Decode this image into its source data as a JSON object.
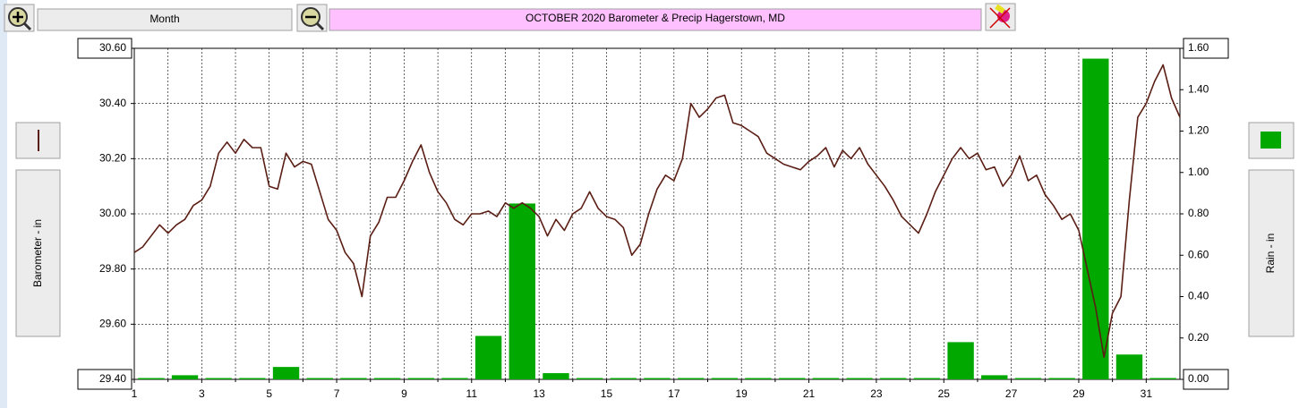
{
  "toolbar": {
    "period": "Month"
  },
  "chart_data": {
    "type": "combo",
    "title": "OCTOBER  2020   Barometer & Precip    Hagerstown, MD",
    "xlim": [
      1,
      32
    ],
    "xticks": [
      1,
      3,
      5,
      7,
      9,
      11,
      13,
      15,
      17,
      19,
      21,
      23,
      25,
      27,
      29,
      31
    ],
    "x_minor_ticks": [
      2,
      4,
      6,
      8,
      10,
      12,
      14,
      16,
      18,
      20,
      22,
      24,
      26,
      28,
      30
    ],
    "ylim": [
      29.4,
      30.6
    ],
    "yticks": [
      {
        "value": 29.4,
        "label": "29.40"
      },
      {
        "value": 29.6,
        "label": "29.60"
      },
      {
        "value": 29.8,
        "label": "29.80"
      },
      {
        "value": 30,
        "label": "30.00"
      },
      {
        "value": 30.2,
        "label": "30.20"
      },
      {
        "value": 30.4,
        "label": "30.40"
      },
      {
        "value": 30.6,
        "label": "30.60"
      }
    ],
    "y2lim": [
      0,
      1.6
    ],
    "y2ticks": [
      {
        "value": 0,
        "label": "0.00"
      },
      {
        "value": 0.2,
        "label": "0.20"
      },
      {
        "value": 0.4,
        "label": "0.40"
      },
      {
        "value": 0.6,
        "label": "0.60"
      },
      {
        "value": 0.8,
        "label": "0.80"
      },
      {
        "value": 1,
        "label": "1.00"
      },
      {
        "value": 1.2,
        "label": "1.20"
      },
      {
        "value": 1.4,
        "label": "1.40"
      },
      {
        "value": 1.6,
        "label": "1.60"
      }
    ],
    "grid": true,
    "series": [
      {
        "name": "Barometer - in",
        "type": "line",
        "color": "#5a1e14",
        "x": [
          1,
          1.25,
          1.5,
          1.75,
          2,
          2.25,
          2.5,
          2.75,
          3,
          3.25,
          3.5,
          3.75,
          4,
          4.25,
          4.5,
          4.75,
          5,
          5.25,
          5.5,
          5.75,
          6,
          6.25,
          6.5,
          6.75,
          7,
          7.25,
          7.5,
          7.75,
          8,
          8.25,
          8.5,
          8.75,
          9,
          9.25,
          9.5,
          9.75,
          10,
          10.25,
          10.5,
          10.75,
          11,
          11.25,
          11.5,
          11.75,
          12,
          12.25,
          12.5,
          12.75,
          13,
          13.25,
          13.5,
          13.75,
          14,
          14.25,
          14.5,
          14.75,
          15,
          15.25,
          15.5,
          15.75,
          16,
          16.25,
          16.5,
          16.75,
          17,
          17.25,
          17.5,
          17.75,
          18,
          18.25,
          18.5,
          18.75,
          19,
          19.25,
          19.5,
          19.75,
          20,
          20.25,
          20.5,
          20.75,
          21,
          21.25,
          21.5,
          21.75,
          22,
          22.25,
          22.5,
          22.75,
          23,
          23.25,
          23.5,
          23.75,
          24,
          24.25,
          24.5,
          24.75,
          25,
          25.25,
          25.5,
          25.75,
          26,
          26.25,
          26.5,
          26.75,
          27,
          27.25,
          27.5,
          27.75,
          28,
          28.25,
          28.5,
          28.75,
          29,
          29.25,
          29.5,
          29.75,
          30,
          30.25,
          30.5,
          30.75,
          31,
          31.25,
          31.5,
          31.75,
          32
        ],
        "values": [
          29.86,
          29.88,
          29.92,
          29.96,
          29.93,
          29.96,
          29.98,
          30.03,
          30.05,
          30.1,
          30.22,
          30.26,
          30.22,
          30.27,
          30.24,
          30.24,
          30.1,
          30.09,
          30.22,
          30.17,
          30.19,
          30.18,
          30.08,
          29.98,
          29.94,
          29.86,
          29.82,
          29.7,
          29.92,
          29.97,
          30.06,
          30.06,
          30.12,
          30.19,
          30.25,
          30.15,
          30.08,
          30.04,
          29.98,
          29.96,
          30,
          30,
          30.01,
          29.99,
          30.04,
          30.02,
          30.04,
          30.02,
          29.99,
          29.92,
          29.98,
          29.94,
          30,
          30.02,
          30.08,
          30.02,
          29.99,
          29.98,
          29.95,
          29.85,
          29.89,
          30,
          30.09,
          30.14,
          30.12,
          30.2,
          30.4,
          30.35,
          30.38,
          30.42,
          30.43,
          30.33,
          30.32,
          30.3,
          30.28,
          30.22,
          30.2,
          30.18,
          30.17,
          30.16,
          30.19,
          30.21,
          30.24,
          30.17,
          30.23,
          30.2,
          30.24,
          30.18,
          30.14,
          30.1,
          30.05,
          29.99,
          29.96,
          29.93,
          30,
          30.08,
          30.14,
          30.2,
          30.24,
          30.2,
          30.22,
          30.16,
          30.17,
          30.1,
          30.14,
          30.21,
          30.12,
          30.14,
          30.07,
          30.03,
          29.98,
          30,
          29.94,
          29.8,
          29.66,
          29.48,
          29.64,
          29.7,
          30.05,
          30.35,
          30.4,
          30.48,
          30.54,
          30.42,
          30.35
        ]
      },
      {
        "name": "Rain - in",
        "type": "bar",
        "axis": "y2",
        "color": "#00a800",
        "x": [
          1,
          2,
          3,
          4,
          5,
          6,
          7,
          8,
          9,
          10,
          11,
          12,
          13,
          14,
          15,
          16,
          17,
          18,
          19,
          20,
          21,
          22,
          23,
          24,
          25,
          26,
          27,
          28,
          29,
          30,
          31
        ],
        "values": [
          0,
          0.02,
          0,
          0,
          0.06,
          0,
          0,
          0,
          0,
          0,
          0.21,
          0.85,
          0.03,
          0,
          0,
          0,
          0,
          0,
          0,
          0,
          0,
          0,
          0,
          0,
          0.18,
          0.02,
          0,
          0,
          1.55,
          0.12,
          0
        ]
      }
    ]
  }
}
